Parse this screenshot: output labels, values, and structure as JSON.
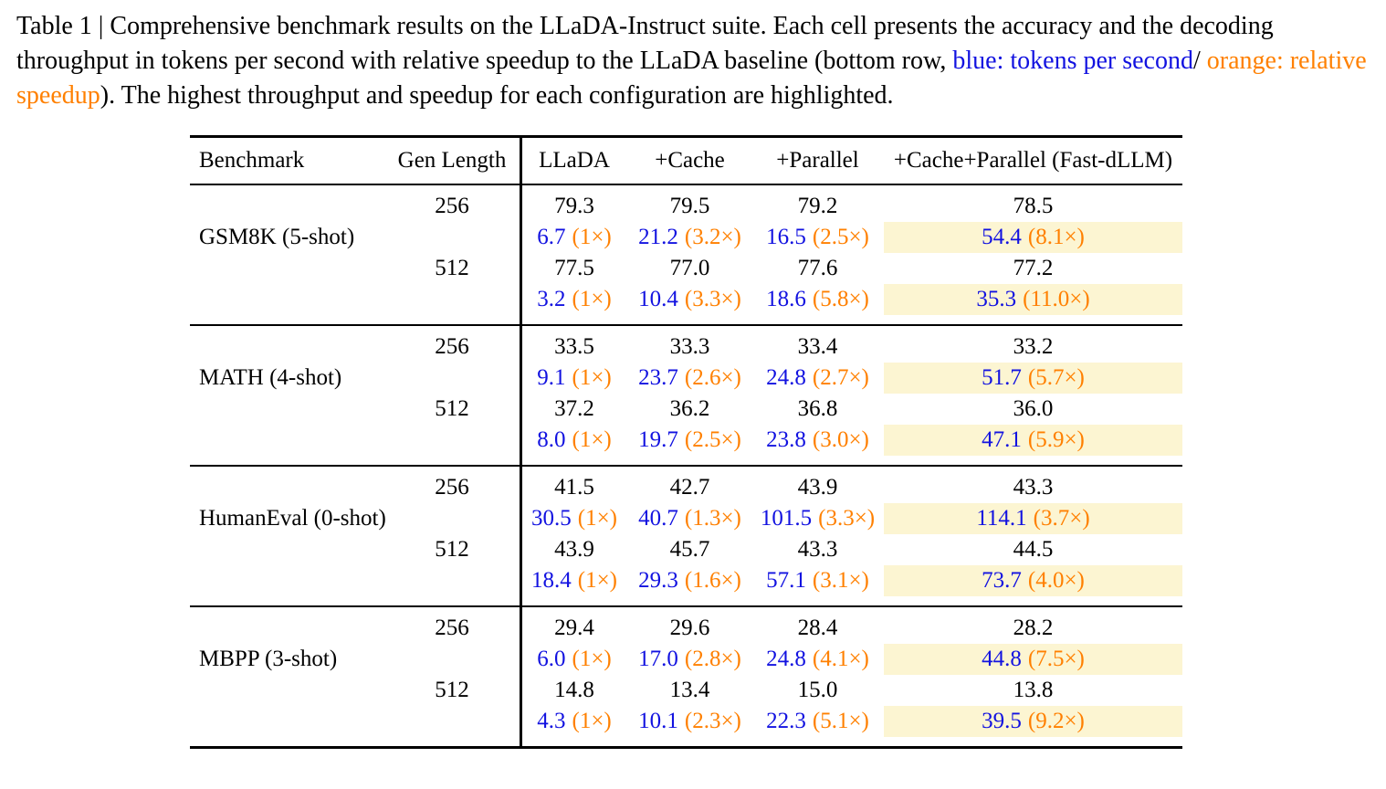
{
  "caption": {
    "text_before": "Table 1 | Comprehensive benchmark results on the LLaDA-Instruct suite. Each cell presents the accuracy and the decoding throughput in tokens per second with relative speedup to the LLaDA baseline (bottom row, ",
    "blue_label": "blue: tokens per second",
    "slash": "/",
    "orange_label": "orange: relative speedup",
    "text_after": "). The highest throughput and speedup for each configuration are highlighted."
  },
  "colors": {
    "blue": "#1212e0",
    "orange": "#ff8000",
    "highlight": "#fcf5d2",
    "text": "#000000"
  },
  "table": {
    "headers": {
      "benchmark": "Benchmark",
      "gen_length": "Gen Length",
      "llada": "LLaDA",
      "cache": "+Cache",
      "parallel": "+Parallel",
      "fast_dllm": "+Cache+Parallel (Fast-dLLM)"
    },
    "highlight_note": "Highest throughput and speedup per configuration (last column) shown on pale-yellow background",
    "sections": [
      {
        "name": "GSM8K (5-shot)",
        "rows": [
          {
            "gen_length": "256",
            "acc": [
              "79.3",
              "79.5",
              "79.2",
              "78.5"
            ],
            "tps": [
              {
                "v": "6.7",
                "s": "(1×)"
              },
              {
                "v": "21.2",
                "s": "(3.2×)"
              },
              {
                "v": "16.5",
                "s": "(2.5×)"
              },
              {
                "v": "54.4",
                "s": "(8.1×)"
              }
            ]
          },
          {
            "gen_length": "512",
            "acc": [
              "77.5",
              "77.0",
              "77.6",
              "77.2"
            ],
            "tps": [
              {
                "v": "3.2",
                "s": "(1×)"
              },
              {
                "v": "10.4",
                "s": "(3.3×)"
              },
              {
                "v": "18.6",
                "s": "(5.8×)"
              },
              {
                "v": "35.3",
                "s": "(11.0×)"
              }
            ]
          }
        ]
      },
      {
        "name": "MATH (4-shot)",
        "rows": [
          {
            "gen_length": "256",
            "acc": [
              "33.5",
              "33.3",
              "33.4",
              "33.2"
            ],
            "tps": [
              {
                "v": "9.1",
                "s": "(1×)"
              },
              {
                "v": "23.7",
                "s": "(2.6×)"
              },
              {
                "v": "24.8",
                "s": "(2.7×)"
              },
              {
                "v": "51.7",
                "s": "(5.7×)"
              }
            ]
          },
          {
            "gen_length": "512",
            "acc": [
              "37.2",
              "36.2",
              "36.8",
              "36.0"
            ],
            "tps": [
              {
                "v": "8.0",
                "s": "(1×)"
              },
              {
                "v": "19.7",
                "s": "(2.5×)"
              },
              {
                "v": "23.8",
                "s": "(3.0×)"
              },
              {
                "v": "47.1",
                "s": "(5.9×)"
              }
            ]
          }
        ]
      },
      {
        "name": "HumanEval (0-shot)",
        "rows": [
          {
            "gen_length": "256",
            "acc": [
              "41.5",
              "42.7",
              "43.9",
              "43.3"
            ],
            "tps": [
              {
                "v": "30.5",
                "s": "(1×)"
              },
              {
                "v": "40.7",
                "s": "(1.3×)"
              },
              {
                "v": "101.5",
                "s": "(3.3×)"
              },
              {
                "v": "114.1",
                "s": "(3.7×)"
              }
            ]
          },
          {
            "gen_length": "512",
            "acc": [
              "43.9",
              "45.7",
              "43.3",
              "44.5"
            ],
            "tps": [
              {
                "v": "18.4",
                "s": "(1×)"
              },
              {
                "v": "29.3",
                "s": "(1.6×)"
              },
              {
                "v": "57.1",
                "s": "(3.1×)"
              },
              {
                "v": "73.7",
                "s": "(4.0×)"
              }
            ]
          }
        ]
      },
      {
        "name": "MBPP (3-shot)",
        "rows": [
          {
            "gen_length": "256",
            "acc": [
              "29.4",
              "29.6",
              "28.4",
              "28.2"
            ],
            "tps": [
              {
                "v": "6.0",
                "s": "(1×)"
              },
              {
                "v": "17.0",
                "s": "(2.8×)"
              },
              {
                "v": "24.8",
                "s": "(4.1×)"
              },
              {
                "v": "44.8",
                "s": "(7.5×)"
              }
            ]
          },
          {
            "gen_length": "512",
            "acc": [
              "14.8",
              "13.4",
              "15.0",
              "13.8"
            ],
            "tps": [
              {
                "v": "4.3",
                "s": "(1×)"
              },
              {
                "v": "10.1",
                "s": "(2.3×)"
              },
              {
                "v": "22.3",
                "s": "(5.1×)"
              },
              {
                "v": "39.5",
                "s": "(9.2×)"
              }
            ]
          }
        ]
      }
    ]
  }
}
